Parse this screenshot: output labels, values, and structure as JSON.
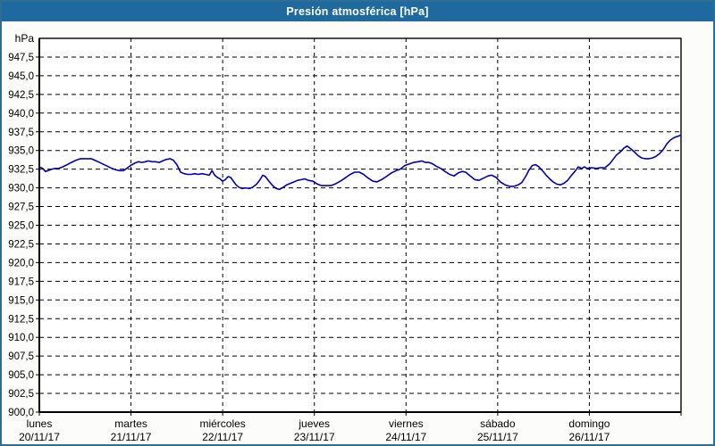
{
  "window": {
    "title": "Presión atmosférica [hPa]"
  },
  "colors": {
    "titlebar_bg": "#1E6A9E",
    "titlebar_text": "#FFFFFF",
    "frame_border": "#2E6E96",
    "page_bg": "#FCFDFB",
    "plot_bg": "#FEFFFE",
    "grid": "#000000",
    "axis": "#000000",
    "label_text": "#000000",
    "series_line": "#0000B4"
  },
  "chart_data": {
    "type": "line",
    "title": "Presión atmosférica [hPa]",
    "legend": "none",
    "grid": {
      "horizontal": "dashed",
      "vertical": "dashed"
    },
    "y_axis": {
      "unit": "hPa",
      "min": 900,
      "max": 950,
      "tick_step": 2.5,
      "tick_labels": [
        "900,0",
        "902,5",
        "905,0",
        "907,5",
        "910,0",
        "912,5",
        "915,0",
        "917,5",
        "920,0",
        "922,5",
        "925,0",
        "927,5",
        "930,0",
        "932,5",
        "935,0",
        "937,5",
        "940,0",
        "942,5",
        "945,0",
        "947,5"
      ]
    },
    "x_axis": {
      "span_days": 7,
      "days": [
        {
          "name": "lunes",
          "date": "20/11/17"
        },
        {
          "name": "martes",
          "date": "21/11/17"
        },
        {
          "name": "miércoles",
          "date": "22/11/17"
        },
        {
          "name": "jueves",
          "date": "23/11/17"
        },
        {
          "name": "viernes",
          "date": "24/11/17"
        },
        {
          "name": "sábado",
          "date": "25/11/17"
        },
        {
          "name": "domingo",
          "date": "26/11/17"
        }
      ]
    },
    "series": [
      {
        "name": "Presión atmosférica",
        "color": "#0000B4",
        "x_unit": "hours_from_start",
        "y_unit": "hPa",
        "points": [
          [
            0.0,
            932.8
          ],
          [
            0.9,
            932.6
          ],
          [
            1.6,
            932.2
          ],
          [
            2.3,
            932.3
          ],
          [
            3.3,
            932.5
          ],
          [
            4.2,
            932.6
          ],
          [
            5.1,
            932.6
          ],
          [
            6.1,
            932.8
          ],
          [
            7.3,
            933.1
          ],
          [
            8.4,
            933.4
          ],
          [
            9.6,
            933.7
          ],
          [
            10.8,
            933.9
          ],
          [
            12.2,
            933.9
          ],
          [
            13.6,
            933.9
          ],
          [
            14.5,
            933.7
          ],
          [
            15.4,
            933.5
          ],
          [
            16.6,
            933.2
          ],
          [
            17.8,
            932.9
          ],
          [
            19.0,
            932.6
          ],
          [
            20.1,
            932.4
          ],
          [
            21.1,
            932.3
          ],
          [
            22.0,
            932.3
          ],
          [
            22.9,
            932.6
          ],
          [
            23.9,
            933.0
          ],
          [
            25.0,
            933.3
          ],
          [
            26.0,
            933.5
          ],
          [
            26.9,
            933.4
          ],
          [
            27.8,
            933.5
          ],
          [
            28.5,
            933.6
          ],
          [
            29.5,
            933.5
          ],
          [
            30.4,
            933.5
          ],
          [
            31.4,
            933.4
          ],
          [
            32.3,
            933.6
          ],
          [
            33.2,
            933.8
          ],
          [
            34.2,
            933.9
          ],
          [
            35.1,
            933.7
          ],
          [
            36.0,
            933.1
          ],
          [
            37.0,
            932.1
          ],
          [
            37.9,
            931.9
          ],
          [
            38.8,
            931.8
          ],
          [
            39.8,
            931.8
          ],
          [
            40.7,
            931.9
          ],
          [
            41.6,
            931.8
          ],
          [
            42.6,
            931.9
          ],
          [
            43.5,
            931.8
          ],
          [
            44.5,
            931.7
          ],
          [
            45.2,
            932.3
          ],
          [
            45.9,
            931.7
          ],
          [
            46.6,
            931.4
          ],
          [
            47.3,
            931.2
          ],
          [
            48.0,
            930.9
          ],
          [
            48.7,
            931.1
          ],
          [
            49.4,
            931.5
          ],
          [
            50.1,
            931.4
          ],
          [
            50.8,
            930.9
          ],
          [
            51.5,
            930.4
          ],
          [
            52.2,
            930.1
          ],
          [
            53.1,
            929.9
          ],
          [
            54.0,
            930.0
          ],
          [
            55.0,
            929.9
          ],
          [
            55.9,
            930.1
          ],
          [
            56.9,
            930.5
          ],
          [
            57.8,
            931.1
          ],
          [
            58.5,
            931.7
          ],
          [
            59.2,
            931.5
          ],
          [
            60.1,
            930.9
          ],
          [
            61.1,
            930.3
          ],
          [
            62.0,
            929.9
          ],
          [
            62.9,
            929.8
          ],
          [
            63.9,
            930.1
          ],
          [
            64.8,
            930.4
          ],
          [
            65.7,
            930.6
          ],
          [
            66.7,
            930.8
          ],
          [
            67.6,
            931.0
          ],
          [
            68.6,
            931.1
          ],
          [
            69.5,
            931.2
          ],
          [
            70.4,
            931.0
          ],
          [
            71.6,
            930.9
          ],
          [
            72.8,
            930.5
          ],
          [
            73.9,
            930.3
          ],
          [
            75.1,
            930.3
          ],
          [
            76.3,
            930.3
          ],
          [
            77.4,
            930.5
          ],
          [
            78.8,
            930.9
          ],
          [
            80.0,
            931.3
          ],
          [
            81.4,
            931.8
          ],
          [
            82.6,
            932.1
          ],
          [
            83.8,
            932.1
          ],
          [
            84.9,
            931.8
          ],
          [
            86.1,
            931.3
          ],
          [
            87.3,
            930.9
          ],
          [
            88.4,
            930.8
          ],
          [
            89.6,
            931.1
          ],
          [
            90.8,
            931.5
          ],
          [
            92.2,
            932.0
          ],
          [
            93.4,
            932.3
          ],
          [
            94.5,
            932.5
          ],
          [
            95.7,
            933.0
          ],
          [
            96.9,
            933.2
          ],
          [
            98.0,
            933.4
          ],
          [
            99.2,
            933.5
          ],
          [
            100.1,
            933.6
          ],
          [
            101.1,
            933.4
          ],
          [
            102.0,
            933.4
          ],
          [
            103.0,
            933.2
          ],
          [
            103.9,
            932.9
          ],
          [
            105.1,
            932.6
          ],
          [
            106.2,
            932.2
          ],
          [
            107.4,
            931.8
          ],
          [
            108.6,
            931.6
          ],
          [
            109.7,
            932.0
          ],
          [
            110.7,
            932.2
          ],
          [
            111.6,
            932.1
          ],
          [
            112.8,
            931.6
          ],
          [
            114.0,
            931.1
          ],
          [
            115.1,
            931.0
          ],
          [
            116.3,
            931.3
          ],
          [
            117.5,
            931.6
          ],
          [
            118.4,
            931.7
          ],
          [
            119.6,
            931.4
          ],
          [
            120.7,
            930.8
          ],
          [
            121.9,
            930.4
          ],
          [
            123.1,
            930.2
          ],
          [
            124.2,
            930.2
          ],
          [
            125.4,
            930.4
          ],
          [
            126.3,
            930.7
          ],
          [
            127.3,
            931.5
          ],
          [
            128.2,
            932.4
          ],
          [
            129.1,
            933.0
          ],
          [
            129.9,
            933.1
          ],
          [
            130.8,
            932.8
          ],
          [
            131.7,
            932.3
          ],
          [
            132.7,
            931.7
          ],
          [
            133.6,
            931.2
          ],
          [
            134.5,
            930.8
          ],
          [
            135.5,
            930.5
          ],
          [
            136.4,
            930.4
          ],
          [
            137.3,
            930.6
          ],
          [
            138.3,
            931.0
          ],
          [
            139.2,
            931.6
          ],
          [
            140.2,
            932.2
          ],
          [
            141.1,
            932.8
          ],
          [
            142.0,
            932.6
          ],
          [
            142.7,
            932.8
          ],
          [
            143.4,
            932.6
          ],
          [
            144.6,
            932.7
          ],
          [
            145.8,
            932.6
          ],
          [
            146.9,
            932.7
          ],
          [
            148.1,
            932.7
          ],
          [
            149.3,
            933.2
          ],
          [
            150.2,
            933.8
          ],
          [
            151.1,
            934.4
          ],
          [
            152.1,
            934.8
          ],
          [
            153.0,
            935.3
          ],
          [
            153.9,
            935.6
          ],
          [
            154.9,
            935.2
          ],
          [
            155.8,
            934.8
          ],
          [
            156.8,
            934.3
          ],
          [
            157.7,
            934.0
          ],
          [
            158.6,
            933.9
          ],
          [
            159.6,
            933.9
          ],
          [
            160.5,
            934.0
          ],
          [
            161.4,
            934.2
          ],
          [
            162.4,
            934.6
          ],
          [
            163.3,
            935.1
          ],
          [
            164.3,
            935.9
          ],
          [
            165.2,
            936.4
          ],
          [
            166.1,
            936.7
          ],
          [
            167.1,
            936.9
          ],
          [
            167.8,
            937.0
          ]
        ]
      }
    ]
  }
}
